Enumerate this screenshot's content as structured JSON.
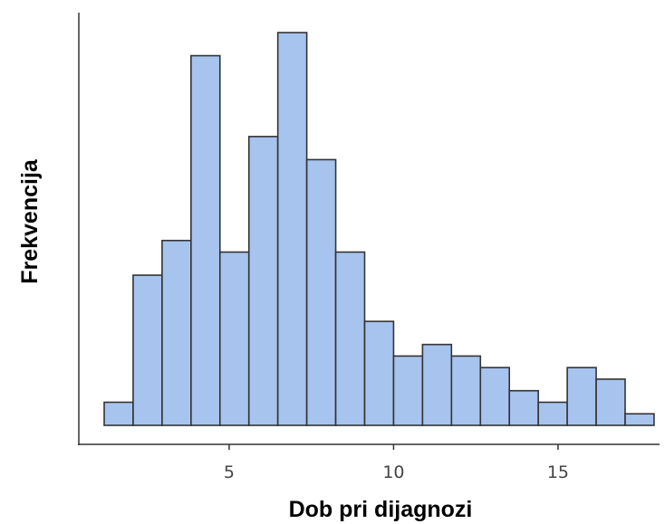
{
  "chart_data": {
    "type": "bar",
    "title": "",
    "xlabel": "Dob pri dijagnozi",
    "ylabel": "Frekvencija",
    "xlim": [
      0.85,
      17.4
    ],
    "ylim": [
      0,
      34
    ],
    "x_ticks": [
      5,
      10,
      15
    ],
    "x_tick_labels": [
      "5",
      "10",
      "15"
    ],
    "y_ticks_shown": false,
    "grid": false,
    "bar_fill": "#a7c4ef",
    "bar_stroke": "#333333",
    "bins": [
      {
        "x0": 1.2,
        "x1": 2.08,
        "count": 2
      },
      {
        "x0": 2.08,
        "x1": 2.96,
        "count": 13
      },
      {
        "x0": 2.96,
        "x1": 3.84,
        "count": 16
      },
      {
        "x0": 3.84,
        "x1": 4.72,
        "count": 32
      },
      {
        "x0": 4.72,
        "x1": 5.6,
        "count": 15
      },
      {
        "x0": 5.6,
        "x1": 6.48,
        "count": 25
      },
      {
        "x0": 6.48,
        "x1": 7.36,
        "count": 34
      },
      {
        "x0": 7.36,
        "x1": 8.24,
        "count": 23
      },
      {
        "x0": 8.24,
        "x1": 9.12,
        "count": 15
      },
      {
        "x0": 9.12,
        "x1": 10.0,
        "count": 9
      },
      {
        "x0": 10.0,
        "x1": 10.88,
        "count": 6
      },
      {
        "x0": 10.88,
        "x1": 11.76,
        "count": 7
      },
      {
        "x0": 11.76,
        "x1": 12.64,
        "count": 6
      },
      {
        "x0": 12.64,
        "x1": 13.52,
        "count": 5
      },
      {
        "x0": 13.52,
        "x1": 14.4,
        "count": 3
      },
      {
        "x0": 14.4,
        "x1": 15.28,
        "count": 2
      },
      {
        "x0": 15.28,
        "x1": 16.16,
        "count": 5
      },
      {
        "x0": 16.16,
        "x1": 17.04,
        "count": 4
      },
      {
        "x0": 17.04,
        "x1": 17.92,
        "count": 1
      }
    ]
  }
}
